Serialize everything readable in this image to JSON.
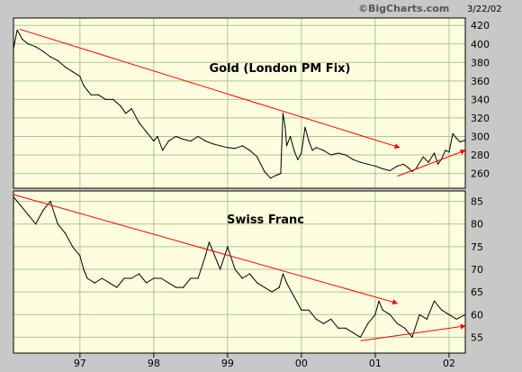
{
  "header": {
    "brand": "©BigCharts.com",
    "date": "3/22/02"
  },
  "colors": {
    "background": "#c8c8c8",
    "plot_bg": "#fffde0",
    "grid": "#a8c88c",
    "series": "#000000",
    "trendline": "#ff0000",
    "frame": "#000000"
  },
  "x_axis": {
    "tick_labels": [
      "97",
      "98",
      "99",
      "00",
      "01",
      "02"
    ],
    "ticks": [
      1997,
      1998,
      1999,
      2000,
      2001,
      2002
    ],
    "range": [
      1996.1,
      2002.22
    ]
  },
  "chart_data": [
    {
      "type": "line",
      "title": "Gold (London PM Fix)",
      "xlabel": "",
      "ylabel": "",
      "grid": true,
      "ylim": [
        244,
        428
      ],
      "yticks": [
        260,
        280,
        300,
        320,
        340,
        360,
        380,
        400,
        420
      ],
      "series": [
        {
          "x": [
            1996.1,
            1996.15,
            1996.22,
            1996.3,
            1996.4,
            1996.5,
            1996.6,
            1996.7,
            1996.8,
            1996.9,
            1997.0,
            1997.05,
            1997.1,
            1997.15,
            1997.25,
            1997.35,
            1997.45,
            1997.55,
            1997.62,
            1997.7,
            1997.8,
            1997.9,
            1998.0,
            1998.05,
            1998.12,
            1998.2,
            1998.3,
            1998.4,
            1998.5,
            1998.6,
            1998.7,
            1998.8,
            1998.9,
            1999.0,
            1999.1,
            1999.2,
            1999.3,
            1999.4,
            1999.5,
            1999.58,
            1999.66,
            1999.72,
            1999.75,
            1999.78,
            1999.8,
            1999.85,
            1999.9,
            1999.95,
            2000.0,
            2000.05,
            2000.1,
            2000.15,
            2000.2,
            2000.3,
            2000.4,
            2000.5,
            2000.6,
            2000.7,
            2000.8,
            2000.9,
            2001.0,
            2001.1,
            2001.2,
            2001.3,
            2001.38,
            2001.45,
            2001.5,
            2001.55,
            2001.65,
            2001.72,
            2001.8,
            2001.85,
            2001.9,
            2001.95,
            2002.0,
            2002.05,
            2002.1,
            2002.15,
            2002.22
          ],
          "values": [
            395,
            415,
            405,
            400,
            397,
            392,
            386,
            382,
            375,
            370,
            365,
            355,
            350,
            345,
            345,
            340,
            340,
            333,
            325,
            330,
            315,
            305,
            295,
            300,
            285,
            295,
            300,
            297,
            295,
            300,
            295,
            292,
            290,
            288,
            287,
            290,
            285,
            278,
            262,
            255,
            258,
            260,
            325,
            310,
            290,
            300,
            285,
            275,
            282,
            310,
            295,
            285,
            288,
            285,
            280,
            282,
            280,
            275,
            272,
            270,
            268,
            265,
            263,
            268,
            270,
            266,
            262,
            265,
            278,
            272,
            282,
            270,
            276,
            285,
            283,
            303,
            298,
            294,
            296
          ]
        }
      ],
      "trendlines": [
        {
          "from": [
            1996.18,
            416
          ],
          "to": [
            2001.33,
            288
          ]
        },
        {
          "from": [
            2001.3,
            257
          ],
          "to": [
            2002.22,
            285
          ]
        }
      ]
    },
    {
      "type": "line",
      "title": "Swiss Franc",
      "xlabel": "",
      "ylabel": "",
      "grid": true,
      "ylim": [
        51.5,
        87.3
      ],
      "yticks": [
        55,
        60,
        65,
        70,
        75,
        80,
        85
      ],
      "series": [
        {
          "x": [
            1996.1,
            1996.2,
            1996.3,
            1996.4,
            1996.5,
            1996.6,
            1996.7,
            1996.8,
            1996.9,
            1997.0,
            1997.05,
            1997.1,
            1997.2,
            1997.3,
            1997.4,
            1997.5,
            1997.6,
            1997.7,
            1997.8,
            1997.9,
            1998.0,
            1998.1,
            1998.2,
            1998.3,
            1998.4,
            1998.5,
            1998.6,
            1998.7,
            1998.75,
            1998.8,
            1998.9,
            1999.0,
            1999.1,
            1999.2,
            1999.3,
            1999.4,
            1999.5,
            1999.6,
            1999.7,
            1999.75,
            1999.8,
            1999.9,
            2000.0,
            2000.1,
            2000.2,
            2000.3,
            2000.4,
            2000.5,
            2000.6,
            2000.7,
            2000.8,
            2000.9,
            2001.0,
            2001.05,
            2001.1,
            2001.2,
            2001.3,
            2001.4,
            2001.5,
            2001.6,
            2001.7,
            2001.8,
            2001.9,
            2002.0,
            2002.1,
            2002.22
          ],
          "values": [
            86,
            84,
            82,
            80,
            83,
            85,
            80,
            78,
            75,
            73,
            70,
            68,
            67,
            68,
            67,
            66,
            68,
            68,
            69,
            67,
            68,
            68,
            67,
            66,
            66,
            68,
            68,
            73,
            76,
            74,
            70,
            75,
            70,
            68,
            69,
            67,
            66,
            65,
            66,
            69,
            67,
            64,
            61,
            61,
            59,
            58,
            59,
            57,
            57,
            56,
            55,
            58,
            60,
            63,
            61,
            60,
            58,
            57,
            55,
            60,
            59,
            63,
            61,
            60,
            59,
            60
          ]
        }
      ],
      "trendlines": [
        {
          "from": [
            1996.1,
            86.5
          ],
          "to": [
            2001.3,
            62.5
          ]
        },
        {
          "from": [
            2000.8,
            54.2
          ],
          "to": [
            2002.22,
            57.5
          ]
        }
      ]
    }
  ]
}
